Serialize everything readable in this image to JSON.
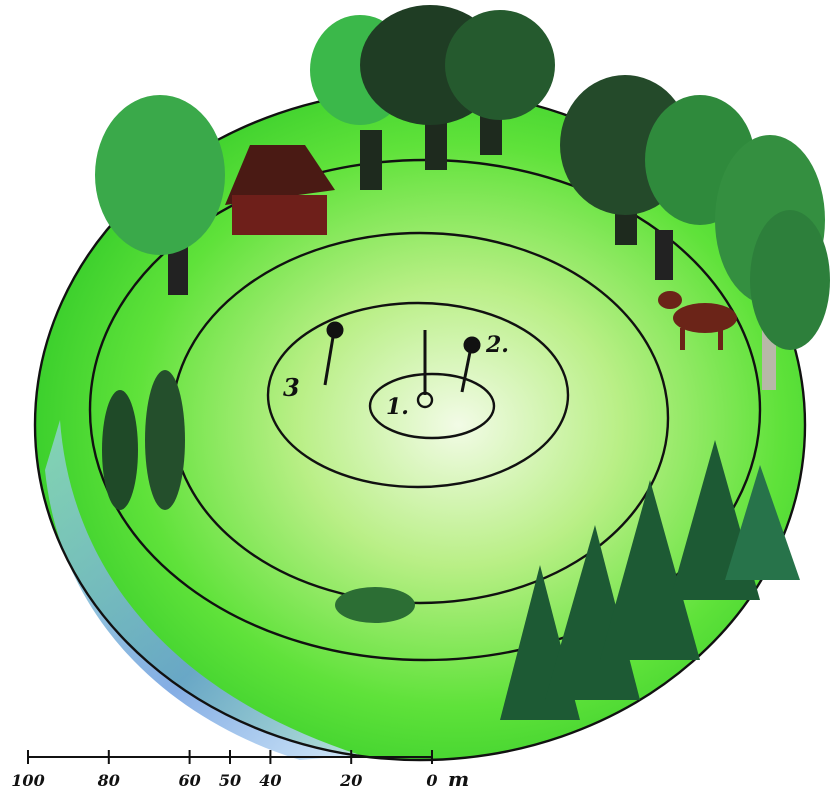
{
  "labels": {
    "point_1": "1.",
    "point_2": "2.",
    "point_3": "3"
  },
  "scale": {
    "ticks": [
      100,
      80,
      60,
      50,
      40,
      20,
      0
    ],
    "unit": "m"
  }
}
